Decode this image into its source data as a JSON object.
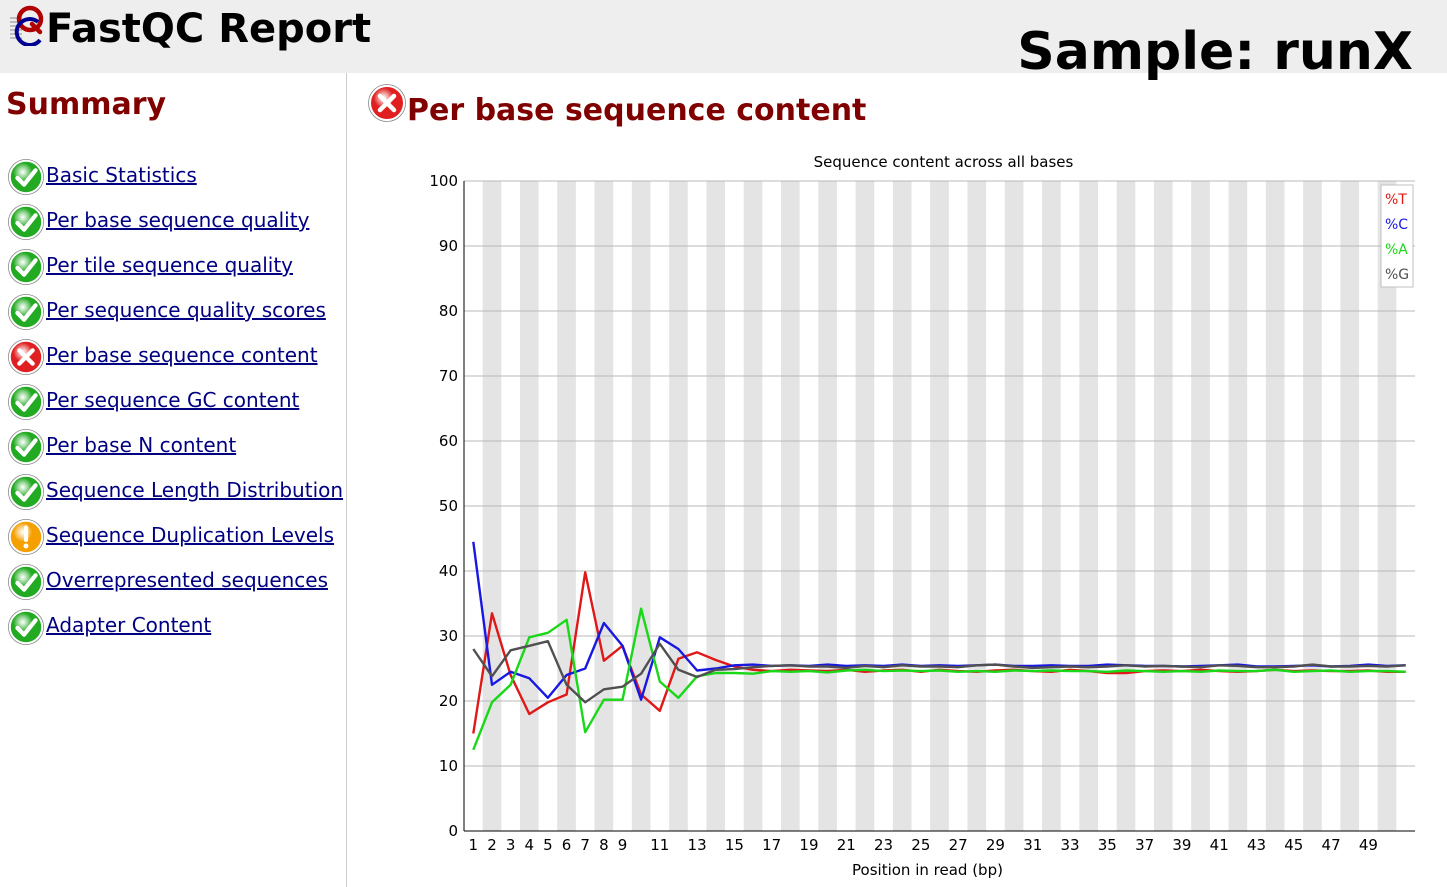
{
  "header": {
    "title": "FastQC Report",
    "sample": "Sample: runX"
  },
  "sidebar": {
    "heading": "Summary",
    "items": [
      {
        "label": "Basic Statistics",
        "status": "pass"
      },
      {
        "label": "Per base sequence quality",
        "status": "pass"
      },
      {
        "label": "Per tile sequence quality",
        "status": "pass"
      },
      {
        "label": "Per sequence quality scores",
        "status": "pass"
      },
      {
        "label": "Per base sequence content",
        "status": "fail"
      },
      {
        "label": "Per sequence GC content",
        "status": "pass"
      },
      {
        "label": "Per base N content",
        "status": "pass"
      },
      {
        "label": "Sequence Length Distribution",
        "status": "pass"
      },
      {
        "label": "Sequence Duplication Levels",
        "status": "warn"
      },
      {
        "label": "Overrepresented sequences",
        "status": "pass"
      },
      {
        "label": "Adapter Content",
        "status": "pass"
      }
    ]
  },
  "main": {
    "module_title": "Per base sequence content",
    "module_status": "fail"
  },
  "colors": {
    "heading": "#800000",
    "link": "#000080",
    "pass": "#22aa22",
    "fail": "#e02020",
    "warn": "#f5a000"
  },
  "chart_data": {
    "type": "line",
    "title": "Sequence content across all bases",
    "xlabel": "Position in read (bp)",
    "ylabel": "",
    "ylim": [
      0,
      100
    ],
    "yticks": [
      0,
      10,
      20,
      30,
      40,
      50,
      60,
      70,
      80,
      90,
      100
    ],
    "x_tick_labels": [
      "1",
      "2",
      "3",
      "4",
      "5",
      "6",
      "7",
      "8",
      "9",
      "11",
      "13",
      "15",
      "17",
      "19",
      "21",
      "23",
      "25",
      "27",
      "29",
      "31",
      "33",
      "35",
      "37",
      "39",
      "41",
      "43",
      "45",
      "47",
      "49"
    ],
    "legend_position": "top-right",
    "grid": true,
    "series": [
      {
        "name": "%T",
        "color": "#e01818",
        "values": [
          15,
          33.5,
          24,
          18,
          19.8,
          21,
          39.8,
          26.2,
          28.5,
          21,
          18.5,
          26.5,
          27.5,
          26.3,
          25.3,
          24.8,
          24.6,
          24.8,
          24.7,
          24.6,
          24.8,
          24.5,
          24.7,
          24.8,
          24.5,
          24.8,
          24.6,
          24.5,
          24.7,
          24.8,
          24.6,
          24.5,
          24.8,
          24.6,
          24.3,
          24.3,
          24.6,
          24.7,
          24.6,
          24.8,
          24.6,
          24.5,
          24.6,
          24.8,
          24.6,
          24.7,
          24.6,
          24.6,
          24.7,
          24.5,
          24.5
        ]
      },
      {
        "name": "%C",
        "color": "#1818e0",
        "values": [
          44.5,
          22.5,
          24.5,
          23.5,
          20.5,
          24,
          25,
          32,
          28.5,
          20.2,
          29.8,
          28,
          24.7,
          25,
          25.5,
          25.6,
          25.4,
          25.5,
          25.4,
          25.6,
          25.4,
          25.5,
          25.4,
          25.6,
          25.4,
          25.5,
          25.4,
          25.5,
          25.6,
          25.4,
          25.4,
          25.5,
          25.4,
          25.4,
          25.6,
          25.5,
          25.4,
          25.4,
          25.3,
          25.4,
          25.5,
          25.6,
          25.3,
          25.3,
          25.4,
          25.5,
          25.3,
          25.4,
          25.6,
          25.4,
          25.5
        ]
      },
      {
        "name": "%A",
        "color": "#18d818",
        "values": [
          12.5,
          19.8,
          22.5,
          29.8,
          30.5,
          32.5,
          15.2,
          20.2,
          20.2,
          34.2,
          23,
          20.5,
          23.8,
          24.3,
          24.3,
          24.2,
          24.6,
          24.5,
          24.6,
          24.4,
          24.7,
          24.8,
          24.6,
          24.7,
          24.6,
          24.7,
          24.5,
          24.6,
          24.5,
          24.7,
          24.6,
          24.7,
          24.6,
          24.6,
          24.5,
          24.7,
          24.6,
          24.5,
          24.6,
          24.5,
          24.7,
          24.6,
          24.6,
          24.8,
          24.5,
          24.6,
          24.7,
          24.5,
          24.6,
          24.6,
          24.5
        ]
      },
      {
        "name": "%G",
        "color": "#505050",
        "values": [
          28,
          23.8,
          27.8,
          28.5,
          29.2,
          22.5,
          19.8,
          21.8,
          22.2,
          24.2,
          28.8,
          24.8,
          23.7,
          24.8,
          24.9,
          25.2,
          25.4,
          25.5,
          25.3,
          25.3,
          25.1,
          25.4,
          25.2,
          25.5,
          25.3,
          25.3,
          25.2,
          25.5,
          25.6,
          25.3,
          25.1,
          25.2,
          25.3,
          25.2,
          25.3,
          25.5,
          25.3,
          25.4,
          25.3,
          25.2,
          25.5,
          25.4,
          25.2,
          25.2,
          25.3,
          25.6,
          25.3,
          25.3,
          25.4,
          25.3,
          25.5
        ]
      }
    ]
  }
}
